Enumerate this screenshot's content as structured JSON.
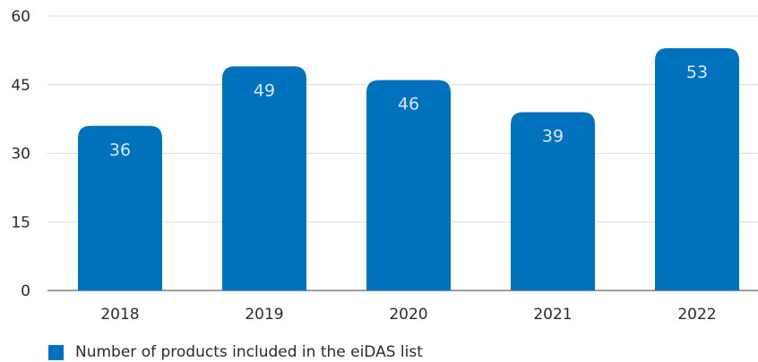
{
  "chart_data": {
    "type": "bar",
    "categories": [
      "2018",
      "2019",
      "2020",
      "2021",
      "2022"
    ],
    "series": [
      {
        "name": "Number of products included in the eiDAS list",
        "values": [
          36,
          49,
          46,
          39,
          53
        ]
      }
    ],
    "ylim": [
      0,
      60
    ],
    "yticks": [
      0,
      15,
      30,
      45,
      60
    ],
    "grid": true,
    "data_labels": true,
    "legend_position": "bottom-left",
    "title": "",
    "xlabel": "",
    "ylabel": "",
    "colors": {
      "bar": "#0071bc",
      "grid": "#dcdcdc",
      "axis": "#666666"
    }
  }
}
